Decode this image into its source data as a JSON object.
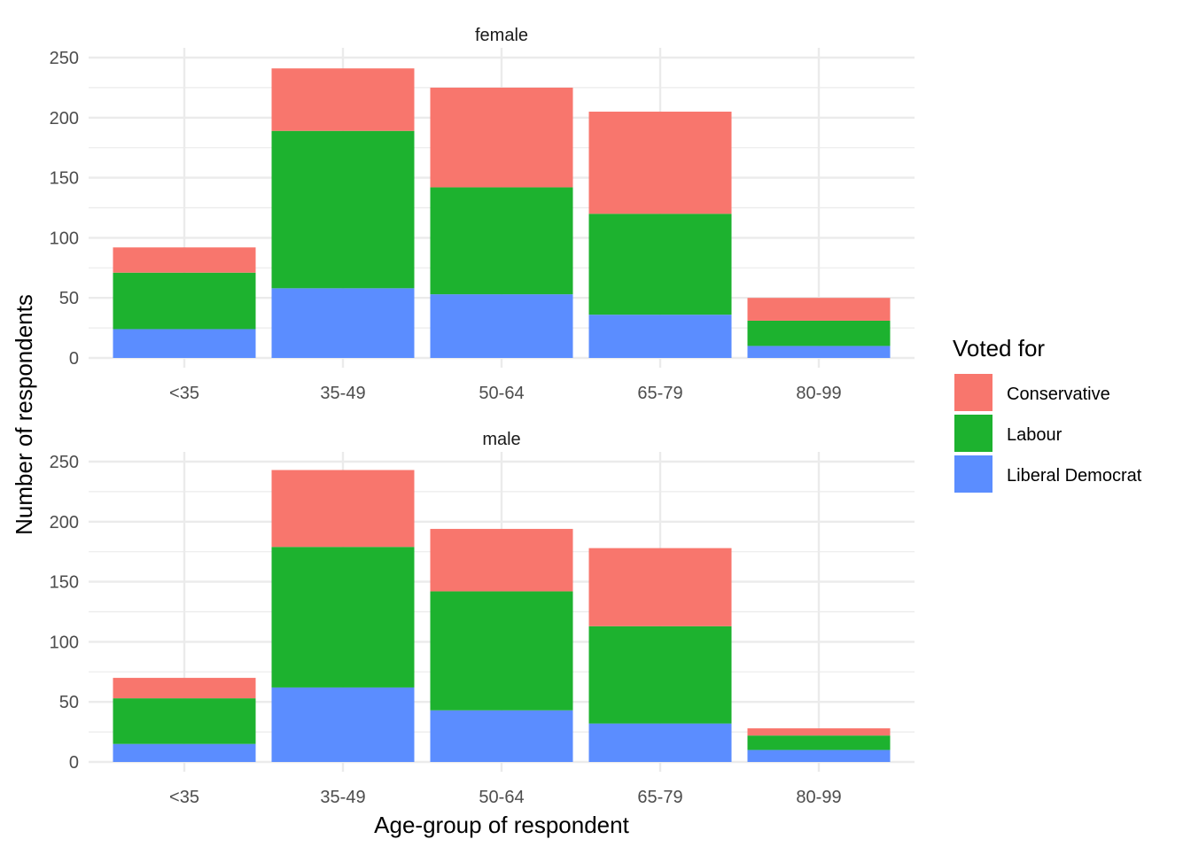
{
  "chart_data": {
    "type": "bar",
    "stacked": true,
    "facet_layout": "vertical",
    "grid": true,
    "legend_position": "right",
    "xlabel": "Age-group of respondent",
    "ylabel": "Number of respondents",
    "ylim": [
      0,
      250
    ],
    "yticks": [
      0,
      50,
      100,
      150,
      200,
      250
    ],
    "categories": [
      "<35",
      "35-49",
      "50-64",
      "65-79",
      "80-99"
    ],
    "legend": {
      "title": "Voted for",
      "entries": [
        "Conservative",
        "Labour",
        "Liberal Democrat"
      ]
    },
    "colors": {
      "Conservative": "#F8766D",
      "Labour": "#1DB22F",
      "Liberal Democrat": "#5B8DFF"
    },
    "facets": [
      {
        "label": "female",
        "series": [
          {
            "name": "Liberal Democrat",
            "values": [
              24,
              58,
              53,
              36,
              10
            ]
          },
          {
            "name": "Labour",
            "values": [
              47,
              131,
              89,
              84,
              21
            ]
          },
          {
            "name": "Conservative",
            "values": [
              21,
              52,
              83,
              85,
              19
            ]
          }
        ]
      },
      {
        "label": "male",
        "series": [
          {
            "name": "Liberal Democrat",
            "values": [
              15,
              62,
              43,
              32,
              10
            ]
          },
          {
            "name": "Labour",
            "values": [
              38,
              117,
              99,
              81,
              12
            ]
          },
          {
            "name": "Conservative",
            "values": [
              17,
              64,
              52,
              65,
              6
            ]
          }
        ]
      }
    ]
  }
}
